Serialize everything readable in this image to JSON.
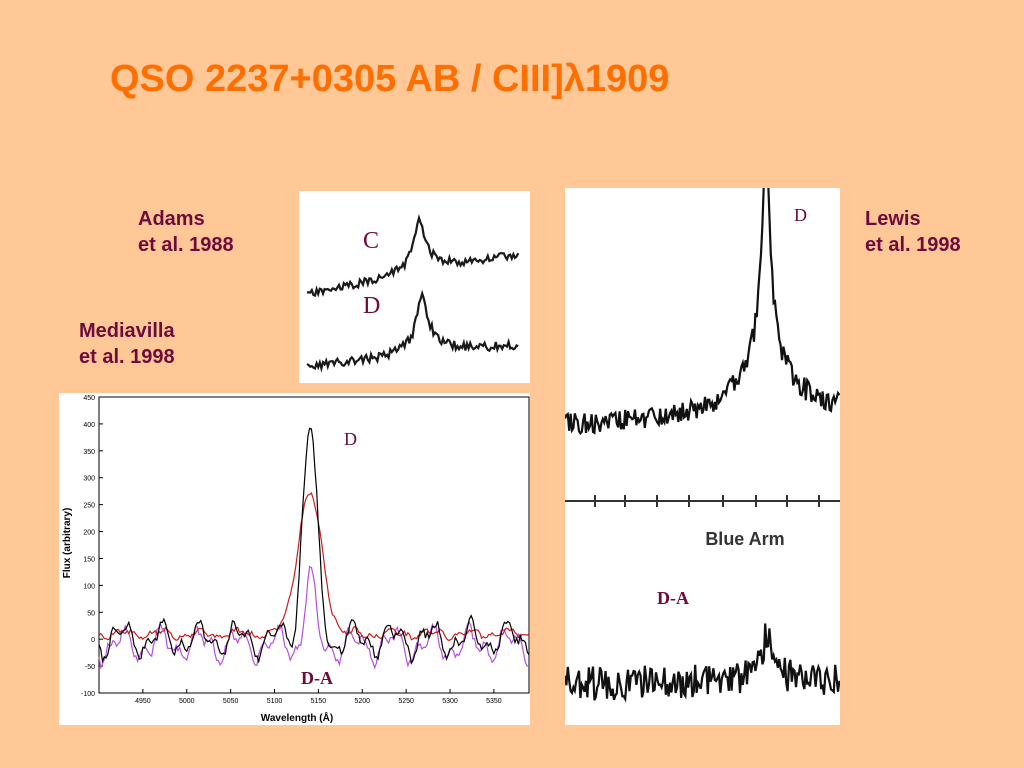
{
  "slide": {
    "title": "QSO 2237+0305 AB / CIII]λ1909"
  },
  "captions": {
    "adams": {
      "line1": "Adams",
      "line2": "et al. 1988"
    },
    "mediavilla": {
      "line1": "Mediavilla",
      "line2": "et al. 1998"
    },
    "lewis": {
      "line1": "Lewis",
      "line2": "et al. 1998"
    }
  },
  "colors": {
    "background": "#FFC896",
    "title": "#FF6E00",
    "caption": "#6E0A3C",
    "series_black": "#000000",
    "series_red": "#C81E1E",
    "series_violet": "#B450DC"
  },
  "chart_data": [
    {
      "id": "adams",
      "type": "line",
      "title": "",
      "xlabel": "",
      "ylabel": "",
      "annotations": [
        "C",
        "D"
      ],
      "series": [
        {
          "label": "C"
        },
        {
          "label": "D"
        }
      ]
    },
    {
      "id": "mediavilla",
      "type": "line",
      "title": "",
      "xlabel": "Wavelength (Å)",
      "ylabel": "Flux (arbitrary)",
      "x_ticks": [
        "4950",
        "5000",
        "5050",
        "5100",
        "5150",
        "5200",
        "5250",
        "5300",
        "5350"
      ],
      "y_ticks": [
        "450",
        "400",
        "350",
        "300",
        "250",
        "200",
        "150",
        "100",
        "50",
        "0",
        "-50",
        "-100"
      ],
      "xlim": [
        4900,
        5390
      ],
      "ylim": [
        -100,
        450
      ],
      "grid": false,
      "annotations": [
        "D",
        "D-A"
      ],
      "series": [
        {
          "color": "#000000",
          "peak_x": 5140,
          "peak_y": 400
        },
        {
          "color": "#C81E1E",
          "peak_x": 5140,
          "peak_y": 270
        },
        {
          "color": "#B450DC",
          "peak_x": 5140,
          "peak_y": 135
        }
      ]
    },
    {
      "id": "lewis",
      "type": "line",
      "title": "",
      "xlabel": "Blue Arm",
      "ylabel": "",
      "annotations": [
        "D",
        "D-A"
      ],
      "series": [
        {
          "label": "D"
        },
        {
          "label": "D-A"
        }
      ]
    }
  ]
}
